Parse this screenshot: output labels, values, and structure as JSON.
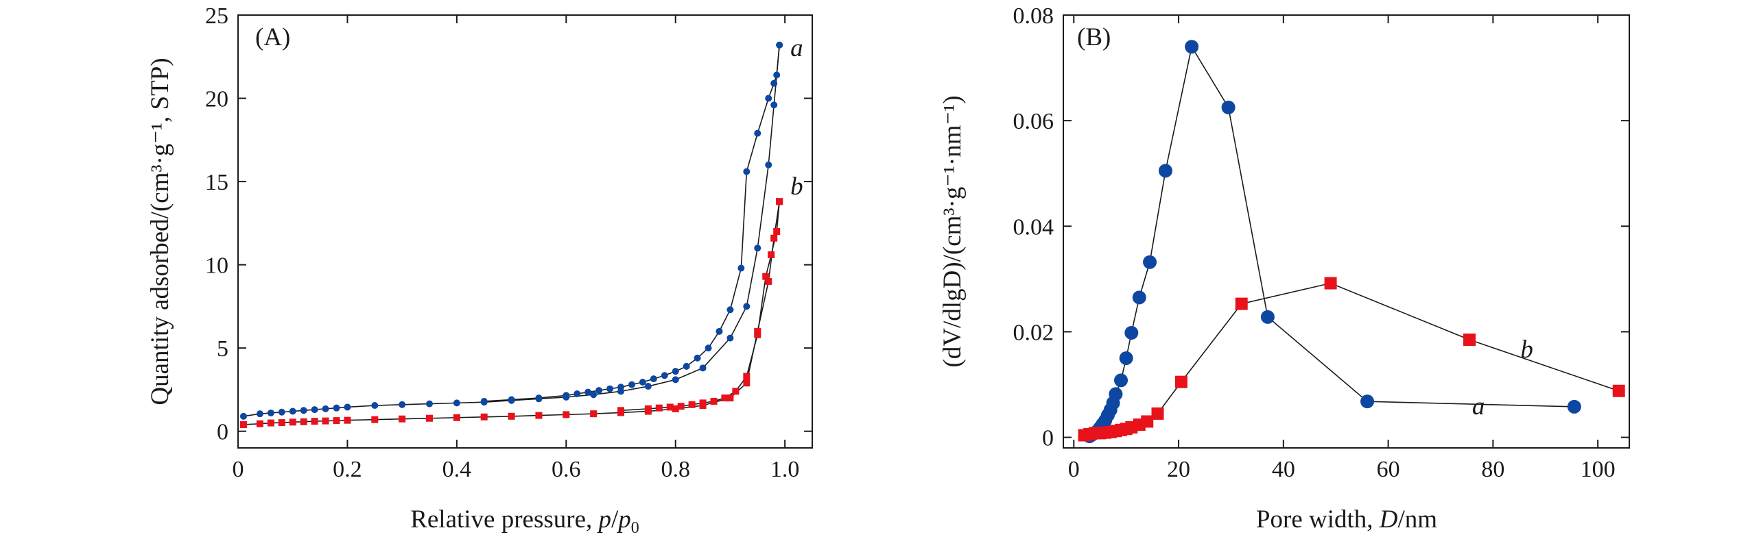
{
  "chart_data": [
    {
      "type": "line",
      "panel_label": "(A)",
      "xlabel": "Relative pressure, ",
      "xlabel_italic": "p",
      "xlabel_sep": "/",
      "xlabel_sub": "0",
      "ylabel": "Quantity adsorbed/(cm³·g⁻¹, STP)",
      "xlim": [
        0,
        1.05
      ],
      "ylim": [
        -1,
        25
      ],
      "xticks": [
        0,
        0.2,
        0.4,
        0.6,
        0.8,
        1.0
      ],
      "xtick_labels": [
        "0",
        "0.2",
        "0.4",
        "0.6",
        "0.8",
        "1.0"
      ],
      "yticks": [
        0,
        5,
        10,
        15,
        20,
        25
      ],
      "ytick_labels": [
        "0",
        "5",
        "10",
        "15",
        "20",
        "25"
      ],
      "series": [
        {
          "name": "a",
          "color": "#0d47a1",
          "marker": "circle",
          "adsorption": {
            "x": [
              0.01,
              0.04,
              0.06,
              0.08,
              0.1,
              0.12,
              0.14,
              0.16,
              0.18,
              0.2,
              0.25,
              0.3,
              0.35,
              0.4,
              0.45,
              0.5,
              0.55,
              0.6,
              0.65,
              0.7,
              0.75,
              0.8,
              0.85,
              0.9,
              0.93,
              0.95,
              0.97,
              0.98,
              0.99
            ],
            "y": [
              0.9,
              1.05,
              1.1,
              1.15,
              1.2,
              1.25,
              1.3,
              1.35,
              1.4,
              1.45,
              1.55,
              1.6,
              1.65,
              1.7,
              1.75,
              1.85,
              1.95,
              2.05,
              2.2,
              2.4,
              2.7,
              3.1,
              3.8,
              5.6,
              7.5,
              11.0,
              16.0,
              19.6,
              23.2
            ]
          },
          "desorption": {
            "x": [
              0.99,
              0.985,
              0.98,
              0.97,
              0.95,
              0.93,
              0.92,
              0.9,
              0.88,
              0.86,
              0.84,
              0.82,
              0.8,
              0.78,
              0.76,
              0.74,
              0.72,
              0.7,
              0.68,
              0.66,
              0.64,
              0.62,
              0.6,
              0.55,
              0.5,
              0.45
            ],
            "y": [
              23.2,
              21.4,
              20.9,
              20.0,
              17.9,
              15.6,
              9.8,
              7.3,
              6.0,
              5.0,
              4.4,
              3.9,
              3.6,
              3.35,
              3.15,
              2.95,
              2.8,
              2.65,
              2.55,
              2.45,
              2.35,
              2.25,
              2.15,
              2.0,
              1.9,
              1.8
            ]
          },
          "label_at": [
            0.995,
            23.2
          ]
        },
        {
          "name": "b",
          "color": "#e8121b",
          "marker": "square",
          "adsorption": {
            "x": [
              0.01,
              0.04,
              0.06,
              0.08,
              0.1,
              0.12,
              0.14,
              0.16,
              0.18,
              0.2,
              0.25,
              0.3,
              0.35,
              0.4,
              0.45,
              0.5,
              0.55,
              0.6,
              0.65,
              0.7,
              0.75,
              0.8,
              0.85,
              0.9,
              0.93,
              0.95,
              0.97,
              0.98,
              0.99
            ],
            "y": [
              0.4,
              0.45,
              0.5,
              0.52,
              0.55,
              0.57,
              0.6,
              0.62,
              0.64,
              0.66,
              0.7,
              0.74,
              0.78,
              0.82,
              0.86,
              0.9,
              0.95,
              1.0,
              1.05,
              1.12,
              1.2,
              1.35,
              1.55,
              2.0,
              2.9,
              6.0,
              9.0,
              11.6,
              13.8
            ]
          },
          "desorption": {
            "x": [
              0.99,
              0.985,
              0.975,
              0.965,
              0.95,
              0.93,
              0.91,
              0.89,
              0.87,
              0.85,
              0.83,
              0.81,
              0.79,
              0.77,
              0.75,
              0.7
            ],
            "y": [
              13.8,
              12.0,
              10.6,
              9.3,
              5.8,
              3.3,
              2.4,
              2.0,
              1.8,
              1.7,
              1.6,
              1.5,
              1.45,
              1.4,
              1.35,
              1.25
            ]
          },
          "label_at": [
            0.995,
            13.8
          ]
        }
      ]
    },
    {
      "type": "scatter",
      "panel_label": "(B)",
      "xlabel": "Pore width, ",
      "xlabel_italic": "D",
      "xlabel_unit": "/nm",
      "ylabel": "(dV/dlgD)/(cm³·g⁻¹·nm⁻¹)",
      "xlim": [
        -2,
        106
      ],
      "ylim": [
        -0.002,
        0.08
      ],
      "xticks": [
        0,
        20,
        40,
        60,
        80,
        100
      ],
      "xtick_labels": [
        "0",
        "20",
        "40",
        "60",
        "80",
        "100"
      ],
      "yticks": [
        0,
        0.02,
        0.04,
        0.06,
        0.08
      ],
      "ytick_labels": [
        "0",
        "0.02",
        "0.04",
        "0.06",
        "0.08"
      ],
      "series": [
        {
          "name": "a",
          "color": "#0d47a1",
          "marker": "circle",
          "x": [
            3.0,
            3.5,
            4.0,
            4.5,
            5.0,
            5.5,
            6.0,
            6.5,
            7.0,
            7.5,
            8.0,
            9.0,
            10.0,
            11.0,
            12.5,
            14.5,
            17.5,
            22.5,
            29.5,
            37.0,
            56.0,
            95.5
          ],
          "y": [
            0.0002,
            0.0005,
            0.0008,
            0.0012,
            0.0018,
            0.0025,
            0.0032,
            0.0042,
            0.0052,
            0.0065,
            0.0082,
            0.0108,
            0.015,
            0.0198,
            0.0265,
            0.0332,
            0.0505,
            0.074,
            0.0625,
            0.0228,
            0.0068,
            0.0058
          ],
          "label_at": [
            76,
            0.0085
          ]
        },
        {
          "name": "b",
          "color": "#e8121b",
          "marker": "square",
          "x": [
            2.0,
            3.0,
            4.0,
            5.0,
            6.0,
            7.0,
            8.0,
            9.0,
            10.0,
            11.0,
            12.5,
            14.0,
            16.0,
            20.5,
            32.0,
            49.0,
            75.5,
            104.0
          ],
          "y": [
            0.0004,
            0.0006,
            0.0008,
            0.0008,
            0.0009,
            0.001,
            0.0012,
            0.0014,
            0.0016,
            0.0019,
            0.0024,
            0.003,
            0.0045,
            0.0105,
            0.0253,
            0.0292,
            0.0185,
            0.0088
          ],
          "label_at": [
            80,
            0.0185
          ]
        }
      ]
    }
  ]
}
